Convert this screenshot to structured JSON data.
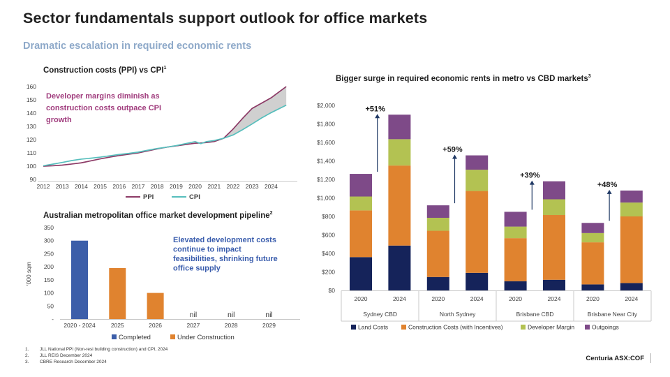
{
  "slide": {
    "title": "Sector fundamentals support outlook for office markets",
    "subtitle": "Dramatic escalation in required economic rents",
    "subtitle_color": "#8ea9c9",
    "brand": "Centuria ASX:COF",
    "footnotes": [
      {
        "num": "1.",
        "text": "JLL National PPI (Non-resi building construction) and CPI, 2024"
      },
      {
        "num": "2.",
        "text": "JLL REIS December 2024"
      },
      {
        "num": "3.",
        "text": "CBRE Research December 2024"
      }
    ]
  },
  "chart_data": [
    {
      "id": "ppi-vs-cpi",
      "type": "line",
      "title": "Construction costs (PPI) vs CPI",
      "title_superscript": "1",
      "annotation_lines": [
        "Developer margins diminish as",
        "construction costs outpace CPI",
        "growth"
      ],
      "annotation_color": "#a03c7d",
      "ylim": [
        90,
        160
      ],
      "ytick_step": 10,
      "xticks": [
        2012,
        2013,
        2014,
        2015,
        2016,
        2017,
        2018,
        2019,
        2020,
        2021,
        2022,
        2023,
        2024
      ],
      "legend_position": "bottom",
      "x": [
        2012,
        2012.5,
        2013,
        2013.5,
        2014,
        2014.5,
        2015,
        2015.5,
        2016,
        2016.5,
        2017,
        2017.5,
        2018,
        2018.5,
        2019,
        2019.5,
        2020,
        2020.3,
        2020.6,
        2021,
        2021.5,
        2022,
        2022.5,
        2023,
        2023.5,
        2024,
        2024.8
      ],
      "series": [
        {
          "name": "PPI",
          "color": "#8c3a66",
          "values": [
            100,
            100.3,
            100.8,
            101.6,
            102.5,
            104,
            105.5,
            106.8,
            108,
            109,
            110,
            111.5,
            113,
            114.3,
            115.3,
            116.3,
            117.3,
            117.5,
            117.8,
            118.5,
            121,
            128,
            136,
            143.5,
            147.5,
            151.5,
            160
          ]
        },
        {
          "name": "CPI",
          "color": "#56bebc",
          "values": [
            100.3,
            101.5,
            102.8,
            104.2,
            105.3,
            106,
            106.8,
            107.8,
            108.8,
            109.6,
            110.6,
            112,
            113.3,
            114.3,
            115.5,
            117,
            118.5,
            117,
            118.5,
            119.3,
            121,
            123.5,
            127.5,
            131.8,
            136.3,
            140.3,
            146
          ]
        }
      ],
      "fill_between": {
        "from": 2021.5,
        "color": "#c8c8c8"
      }
    },
    {
      "id": "pipeline",
      "type": "bar",
      "title": "Australian metropolitan office market development pipeline",
      "title_superscript": "2",
      "ylabel": "'000 sqm",
      "ylim": [
        0,
        350
      ],
      "ytick_labels": [
        "350",
        "300",
        "250",
        "200",
        "150",
        "100",
        "50",
        "-"
      ],
      "ytick_values": [
        350,
        300,
        250,
        200,
        150,
        100,
        50,
        0
      ],
      "categories": [
        "2020 - 2024",
        "2025",
        "2026",
        "2027",
        "2028",
        "2029"
      ],
      "values": [
        300,
        195,
        100,
        null,
        null,
        null
      ],
      "nil_label": "nil",
      "bar_colors": [
        "#3c5ea9",
        "#e0832f",
        "#e0832f",
        null,
        null,
        null
      ],
      "annotation_lines": [
        "Elevated development costs",
        "continue to impact",
        "feasibilities, shrinking future",
        "office supply"
      ],
      "annotation_color": "#3a5dad",
      "legend": [
        {
          "label": "Completed",
          "color": "#3c5ea9"
        },
        {
          "label": "Under Construction",
          "color": "#e0832f"
        }
      ]
    },
    {
      "id": "economic-rents",
      "type": "stacked-bar",
      "title": "Bigger surge in required economic rents in metro vs CBD markets",
      "title_superscript": "3",
      "ylim": [
        0,
        2000
      ],
      "ytick_labels": [
        "$0",
        "$200",
        "$400",
        "$600",
        "$800",
        "$1,000",
        "$1,200",
        "$1,400",
        "$1,600",
        "$1,800",
        "$2,000"
      ],
      "series_names": [
        "Land Costs",
        "Construction Costs (with Incentives)",
        "Developer Margin",
        "Outgoings"
      ],
      "series_colors": [
        "#15235a",
        "#e0832f",
        "#b3c252",
        "#7e4a88"
      ],
      "groups": [
        "Sydney CBD",
        "North Sydney",
        "Brisbane CBD",
        "Brisbane Near City"
      ],
      "pct_changes": [
        "+51%",
        "+59%",
        "+39%",
        "+48%"
      ],
      "arrow_color": "#1f3864",
      "bars": [
        {
          "group": "Sydney CBD",
          "year": "2020",
          "values": [
            360,
            505,
            150,
            245
          ]
        },
        {
          "group": "Sydney CBD",
          "year": "2024",
          "values": [
            485,
            865,
            285,
            265
          ]
        },
        {
          "group": "North Sydney",
          "year": "2020",
          "values": [
            145,
            500,
            140,
            135
          ]
        },
        {
          "group": "North Sydney",
          "year": "2024",
          "values": [
            190,
            885,
            230,
            155
          ]
        },
        {
          "group": "Brisbane CBD",
          "year": "2020",
          "values": [
            100,
            465,
            125,
            160
          ]
        },
        {
          "group": "Brisbane CBD",
          "year": "2024",
          "values": [
            115,
            700,
            170,
            195
          ]
        },
        {
          "group": "Brisbane Near City",
          "year": "2020",
          "values": [
            65,
            455,
            100,
            110
          ]
        },
        {
          "group": "Brisbane Near City",
          "year": "2024",
          "values": [
            80,
            720,
            150,
            130
          ]
        }
      ]
    }
  ]
}
